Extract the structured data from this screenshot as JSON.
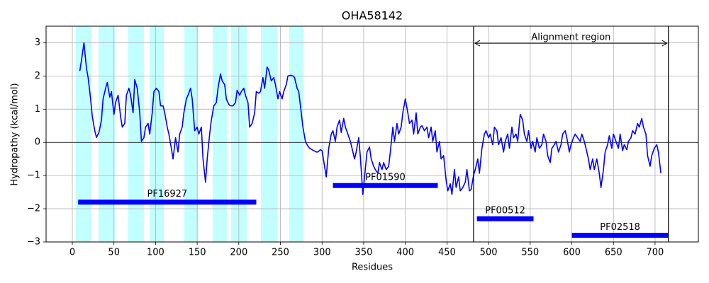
{
  "chart_data": {
    "type": "line",
    "title": "OHA58142",
    "xlabel": "Residues",
    "ylabel": "Hydropathy (kcal/mol)",
    "xlim": [
      -31.5,
      752
    ],
    "ylim": [
      -3,
      3.5
    ],
    "xticks": [
      0,
      50,
      100,
      150,
      200,
      250,
      300,
      350,
      400,
      450,
      500,
      550,
      600,
      650,
      700
    ],
    "yticks": [
      {
        "value": -3,
        "label": "−3"
      },
      {
        "value": -2,
        "label": "−2"
      },
      {
        "value": -1,
        "label": "−1"
      },
      0,
      1,
      2,
      3
    ],
    "grid": true,
    "color": "#0000ff",
    "x": [
      9,
      12,
      14,
      17,
      19,
      22,
      24,
      27,
      29,
      32,
      35,
      37,
      40,
      42,
      45,
      47,
      50,
      52,
      55,
      58,
      60,
      63,
      65,
      68,
      70,
      73,
      75,
      78,
      81,
      83,
      86,
      88,
      91,
      93,
      96,
      98,
      101,
      104,
      106,
      109,
      111,
      114,
      116,
      119,
      121,
      124,
      127,
      129,
      132,
      134,
      137,
      139,
      142,
      144,
      147,
      150,
      152,
      155,
      157,
      160,
      162,
      165,
      167,
      170,
      173,
      175,
      178,
      180,
      183,
      185,
      188,
      190,
      193,
      196,
      198,
      201,
      203,
      206,
      208,
      211,
      213,
      216,
      219,
      221,
      224,
      226,
      229,
      231,
      234,
      236,
      239,
      242,
      244,
      247,
      249,
      252,
      254,
      257,
      259,
      262,
      265,
      267,
      270,
      272,
      275,
      277,
      280,
      282,
      285,
      288,
      290,
      293,
      295,
      298,
      300,
      303,
      305,
      308,
      311,
      313,
      316,
      318,
      321,
      323,
      326,
      328,
      331,
      334,
      336,
      339,
      341,
      344,
      346,
      349,
      351,
      354,
      357,
      359,
      362,
      364,
      367,
      369,
      372,
      374,
      377,
      380,
      382,
      385,
      387,
      390,
      392,
      395,
      397,
      400,
      403,
      405,
      408,
      410,
      413,
      415,
      418,
      420,
      423,
      426,
      428,
      431,
      433,
      436,
      438,
      441,
      443,
      446,
      449,
      451,
      454,
      456,
      459,
      461,
      464,
      466,
      469,
      472,
      474,
      477,
      479,
      482,
      484,
      487,
      489,
      492,
      495,
      497,
      500,
      502,
      505,
      507,
      510,
      512,
      515,
      518,
      520,
      523,
      525,
      528,
      530,
      533,
      535,
      538,
      541,
      543,
      546,
      548,
      551,
      553,
      556,
      558,
      561,
      564,
      566,
      569,
      571,
      574,
      576,
      579,
      581,
      584,
      587,
      589,
      592,
      594,
      597,
      599,
      602,
      604,
      607,
      610,
      612,
      615,
      617,
      620,
      622,
      625,
      627,
      630,
      633,
      635,
      638,
      640,
      643,
      645,
      648,
      650,
      653,
      656,
      658,
      661,
      663,
      666,
      668,
      671,
      673,
      676,
      679,
      681,
      684,
      686,
      689,
      691,
      694,
      696,
      699,
      702,
      704,
      707
    ],
    "values": [
      2.15,
      2.64,
      3.0,
      2.23,
      1.95,
      1.31,
      0.78,
      0.35,
      0.15,
      0.3,
      0.67,
      1.31,
      1.63,
      1.8,
      1.36,
      1.53,
      0.84,
      1.2,
      1.42,
      0.78,
      0.46,
      0.57,
      1.42,
      1.63,
      1.42,
      0.89,
      1.89,
      1.63,
      0.89,
      0.03,
      0.14,
      0.46,
      0.57,
      0.25,
      0.89,
      1.53,
      1.63,
      1.53,
      1.1,
      1.1,
      0.89,
      0.46,
      0.25,
      -0.18,
      -0.5,
      0.14,
      -0.29,
      0.25,
      0.46,
      0.89,
      1.31,
      1.42,
      1.63,
      1.31,
      0.35,
      0.46,
      0.25,
      0.46,
      -0.5,
      -1.2,
      -0.5,
      0.25,
      0.67,
      1.1,
      1.2,
      1.63,
      2.06,
      1.85,
      1.74,
      1.31,
      1.14,
      1.1,
      1.1,
      1.2,
      1.57,
      1.42,
      1.53,
      1.63,
      1.42,
      1.2,
      0.46,
      0.57,
      0.89,
      1.53,
      1.48,
      1.53,
      1.95,
      1.63,
      2.27,
      2.17,
      1.85,
      1.95,
      1.74,
      1.31,
      1.53,
      1.31,
      1.53,
      1.74,
      2.0,
      2.02,
      2.0,
      1.95,
      1.63,
      1.53,
      0.89,
      0.46,
      0.03,
      -0.07,
      -0.18,
      -0.22,
      -0.25,
      -0.29,
      -0.29,
      -0.22,
      -0.25,
      -0.72,
      -1.04,
      -0.18,
      0.25,
      0.35,
      0.03,
      0.46,
      0.67,
      0.3,
      0.72,
      0.46,
      0.25,
      0.03,
      -0.18,
      -0.5,
      -0.29,
      0.14,
      -0.44,
      -1.57,
      -1.04,
      -0.29,
      -0.14,
      -0.5,
      -0.72,
      -0.82,
      -0.93,
      -0.61,
      -0.82,
      -0.61,
      -0.82,
      -0.72,
      -0.29,
      0.46,
      0.03,
      0.57,
      0.25,
      0.46,
      0.89,
      1.31,
      0.89,
      0.57,
      0.67,
      0.25,
      0.89,
      0.25,
      0.46,
      0.5,
      0.35,
      0.46,
      0.14,
      0.46,
      0.03,
      0.35,
      -0.29,
      0.03,
      -0.5,
      -0.4,
      -1.14,
      -1.46,
      -1.25,
      -1.57,
      -0.82,
      -1.36,
      -1.04,
      -1.46,
      -1.36,
      -1.2,
      -0.82,
      -1.46,
      -1.42,
      -0.99,
      -0.82,
      -0.5,
      -0.93,
      -0.18,
      0.25,
      0.35,
      0.14,
      0.25,
      -0.07,
      0.46,
      0.35,
      -0.07,
      0.14,
      -0.29,
      0.03,
      0.25,
      -0.18,
      0.46,
      0.14,
      0.25,
      0.03,
      0.84,
      0.67,
      0.25,
      0.03,
      0.35,
      -0.18,
      0.03,
      -0.29,
      0.14,
      -0.18,
      -0.07,
      0.25,
      0.03,
      -0.4,
      -0.61,
      -0.18,
      -0.07,
      0.03,
      -0.29,
      -0.07,
      0.25,
      0.35,
      0.14,
      -0.29,
      -0.07,
      0.14,
      0.25,
      0.14,
      0.03,
      0.25,
      0.03,
      -0.18,
      -0.5,
      -0.82,
      -0.5,
      -0.82,
      -0.5,
      -0.93,
      -1.36,
      -0.82,
      -0.29,
      -0.07,
      0.2,
      -0.18,
      0.25,
      0.03,
      -0.18,
      0.25,
      -0.25,
      -0.07,
      -0.22,
      0.03,
      0.14,
      0.35,
      0.25,
      0.57,
      0.46,
      0.72,
      0.46,
      0.25,
      -0.4,
      -0.72,
      -0.4,
      -0.18,
      -0.07,
      -0.29,
      -0.93
    ],
    "region_color": "#c2ffff",
    "regions": [
      [
        4,
        23
      ],
      [
        31.5,
        51
      ],
      [
        67,
        86
      ],
      [
        93,
        110
      ],
      [
        134.5,
        151
      ],
      [
        168.6,
        185.6
      ],
      [
        190.7,
        209.5
      ],
      [
        226.5,
        246
      ],
      [
        260.6,
        277.6
      ]
    ],
    "domain_color": "#0000ff",
    "domains": [
      {
        "label": "PF16927",
        "start": 7,
        "end": 221,
        "y": -1.8
      },
      {
        "label": "PF01590",
        "start": 313,
        "end": 439,
        "y": -1.3
      },
      {
        "label": "PF00512",
        "start": 486,
        "end": 554,
        "y": -2.3
      },
      {
        "label": "PF02518",
        "start": 600,
        "end": 716,
        "y": -2.8
      }
    ],
    "alignment": {
      "label": "Alignment region",
      "start": 482,
      "end": 716
    }
  }
}
